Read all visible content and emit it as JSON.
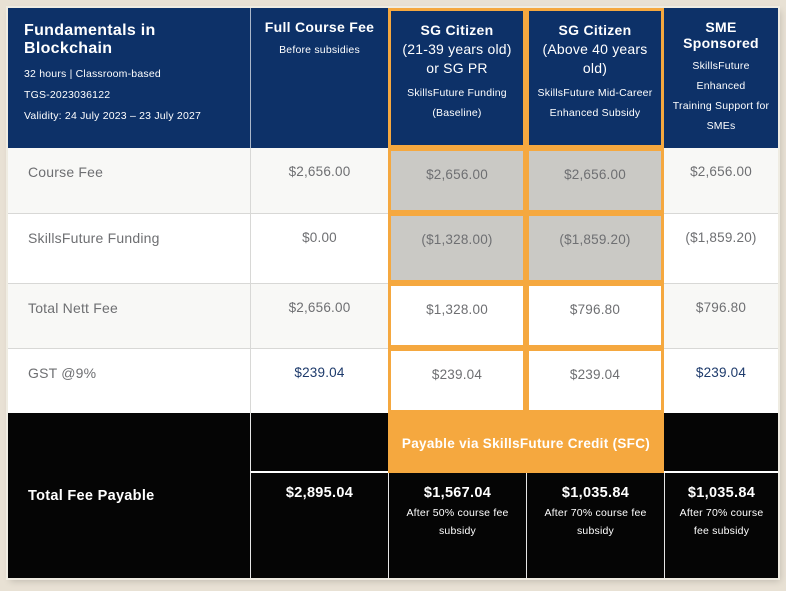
{
  "course": {
    "title": "Fundamentals in Blockchain",
    "meta_format": "32 hours | Classroom-based",
    "meta_code": "TGS-2023036122",
    "meta_validity": "Validity: 24 July 2023 – 23 July 2027"
  },
  "columns": [
    {
      "title": "Full Course Fee",
      "subtitle": "",
      "note": "Before subsidies",
      "highlighted": false
    },
    {
      "title": "SG Citizen",
      "subtitle": "(21-39 years old)\nor SG PR",
      "note": "SkillsFuture Funding (Baseline)",
      "highlighted": true
    },
    {
      "title": "SG Citizen",
      "subtitle": "(Above 40 years old)",
      "note": "SkillsFuture Mid-Career\nEnhanced Subsidy",
      "highlighted": true
    },
    {
      "title": "SME Sponsored",
      "subtitle": "",
      "note": "SkillsFuture Enhanced\nTraining Support for\nSMEs",
      "highlighted": false
    }
  ],
  "rows": [
    {
      "label": "Course Fee",
      "values": [
        "$2,656.00",
        "$2,656.00",
        "$2,656.00",
        "$2,656.00"
      ]
    },
    {
      "label": "SkillsFuture Funding",
      "values": [
        "$0.00",
        "($1,328.00)",
        "($1,859.20)",
        "($1,859.20)"
      ]
    },
    {
      "label": "Total Nett Fee",
      "values": [
        "$2,656.00",
        "$1,328.00",
        "$796.80",
        "$796.80"
      ]
    },
    {
      "label": "GST @9%",
      "values": [
        "$239.04",
        "$239.04",
        "$239.04",
        "$239.04"
      ]
    }
  ],
  "footer": {
    "label": "Total Fee Payable",
    "banner": "Payable via SkillsFuture Credit (SFC)",
    "payables": [
      {
        "amount": "$2,895.04",
        "note": ""
      },
      {
        "amount": "$1,567.04",
        "note": "After 50% course fee subsidy"
      },
      {
        "amount": "$1,035.84",
        "note": "After 70% course fee subsidy"
      },
      {
        "amount": "$1,035.84",
        "note": "After 70% course fee subsidy"
      }
    ]
  },
  "colors": {
    "navy": "#0d3168",
    "orange": "#f5a83f",
    "highlight_gray": "#cac9c5",
    "black": "#050505",
    "page_background": "#e8e1d4",
    "text_gray": "#6e6f72",
    "gst_navy": "#1d3a6b"
  }
}
